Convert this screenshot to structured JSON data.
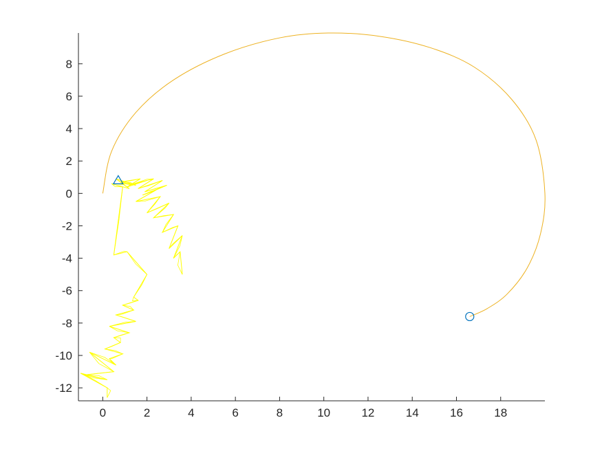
{
  "chart_data": {
    "type": "line",
    "title": "",
    "xlabel": "",
    "ylabel": "",
    "xlim": [
      -1.1,
      20.0
    ],
    "ylim": [
      -12.8,
      9.9
    ],
    "grid": false,
    "box": false,
    "x_ticks": [
      0,
      2,
      4,
      6,
      8,
      10,
      12,
      14,
      16,
      18
    ],
    "x_tick_labels": [
      "0",
      "2",
      "4",
      "6",
      "8",
      "10",
      "12",
      "14",
      "16",
      "18"
    ],
    "y_ticks": [
      8,
      6,
      4,
      2,
      0,
      -2,
      -4,
      -6,
      -8,
      -10,
      -12
    ],
    "y_tick_labels": [
      "8",
      "6",
      "4",
      "2",
      "0",
      "-2",
      "-4",
      "-6",
      "-8",
      "-10",
      "-12"
    ],
    "series": [
      {
        "kind": "smooth-arc",
        "color": "#EDB120",
        "x": [
          0.0,
          0.4,
          1.5,
          3.2,
          5.5,
          8.0,
          10.2,
          12.5,
          14.8,
          16.8,
          18.5,
          19.6,
          20.0,
          19.8,
          19.2,
          18.3,
          17.4,
          16.6
        ],
        "y": [
          0.0,
          2.6,
          5.0,
          7.0,
          8.6,
          9.6,
          9.9,
          9.7,
          9.0,
          7.8,
          5.8,
          3.3,
          0.0,
          -2.5,
          -4.6,
          -6.2,
          -7.1,
          -7.6
        ]
      },
      {
        "kind": "noisy-path",
        "color": "#FFFF00",
        "x": [
          3.6,
          3.5,
          3.2,
          3.6,
          3.0,
          3.4,
          2.7,
          3.2,
          2.3,
          3.0,
          2.0,
          2.6,
          1.5,
          2.4,
          1.8,
          2.9,
          1.9,
          2.7,
          1.6,
          2.3,
          1.4,
          2.0,
          1.1,
          1.7,
          0.8,
          1.5,
          0.6,
          1.2,
          0.4,
          0.9,
          0.5,
          1.1,
          2.0,
          1.4,
          1.6,
          0.9,
          1.4,
          0.6,
          1.5,
          0.3,
          1.2,
          0.5,
          0.8,
          0.1,
          0.9,
          0.3,
          0.6,
          -0.6,
          0.5,
          -0.8,
          0.2,
          -1.0,
          0.2,
          0.2
        ],
        "y": [
          -5.0,
          -3.6,
          -4.0,
          -2.6,
          -3.4,
          -2.0,
          -2.4,
          -1.3,
          -1.5,
          -0.6,
          -1.2,
          -0.2,
          -0.5,
          0.2,
          -0.1,
          0.5,
          0.1,
          0.8,
          0.3,
          0.9,
          0.6,
          0.8,
          0.4,
          0.9,
          0.7,
          0.5,
          0.9,
          0.3,
          0.6,
          0.4,
          -3.8,
          -3.6,
          -5.0,
          -6.4,
          -6.6,
          -6.9,
          -7.2,
          -7.5,
          -7.9,
          -8.2,
          -8.6,
          -8.9,
          -9.2,
          -9.6,
          -9.9,
          -10.2,
          -10.6,
          -9.8,
          -11.0,
          -11.2,
          -11.5,
          -11.1,
          -12.0,
          -12.6
        ],
        "note": ""
      }
    ],
    "markers": [
      {
        "shape": "triangle",
        "color": "#0072BD",
        "x": 0.7,
        "y": 0.8
      },
      {
        "shape": "circle",
        "color": "#0072BD",
        "x": 16.6,
        "y": -7.6
      }
    ]
  }
}
